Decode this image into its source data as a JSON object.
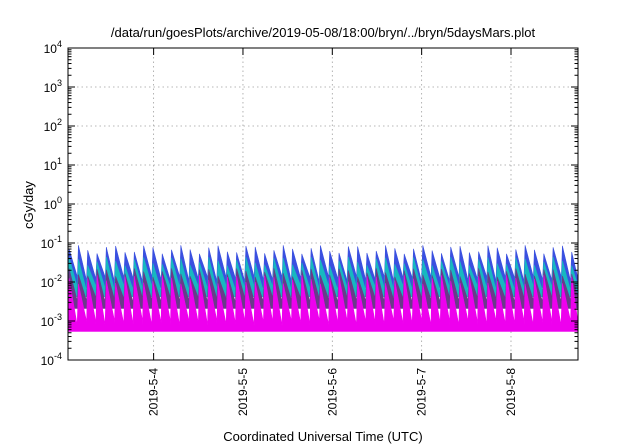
{
  "chart_data": {
    "type": "area",
    "title": "/data/run/goesPlots/archive/2019-05-08/18:00/bryn/../bryn/5daysMars.plot",
    "xlabel": "Coordinated Universal Time (UTC)",
    "ylabel": "cGy/day",
    "yscale": "log",
    "ylim": [
      0.0001,
      10000
    ],
    "xlim": [
      "2019-05-03T01:00",
      "2019-05-08T18:00"
    ],
    "grid": true,
    "x_ticks": [
      "2019-5-4",
      "2019-5-5",
      "2019-5-6",
      "2019-5-7",
      "2019-5-8"
    ],
    "y_ticks": [
      {
        "base": "10",
        "exp": "-4",
        "value": 0.0001
      },
      {
        "base": "10",
        "exp": "-3",
        "value": 0.001
      },
      {
        "base": "10",
        "exp": "-2",
        "value": 0.01
      },
      {
        "base": "10",
        "exp": "-1",
        "value": 0.1
      },
      {
        "base": "10",
        "exp": "0",
        "value": 1
      },
      {
        "base": "10",
        "exp": "1",
        "value": 10
      },
      {
        "base": "10",
        "exp": "2",
        "value": 100
      },
      {
        "base": "10",
        "exp": "3",
        "value": 1000
      },
      {
        "base": "10",
        "exp": "4",
        "value": 10000
      }
    ],
    "sawtooth": {
      "period_hours": 2.5,
      "bands": [
        {
          "color": "#3a50e0",
          "peak": 0.07,
          "trough": 0.012
        },
        {
          "color": "#17b8c0",
          "peak": 0.035,
          "trough": 0.007
        },
        {
          "color": "#6a3a8a",
          "peak": 0.018,
          "trough": 0.0035
        },
        {
          "color": "#ee00ee",
          "peak": 0.012,
          "trough": 0.0009
        }
      ]
    }
  }
}
